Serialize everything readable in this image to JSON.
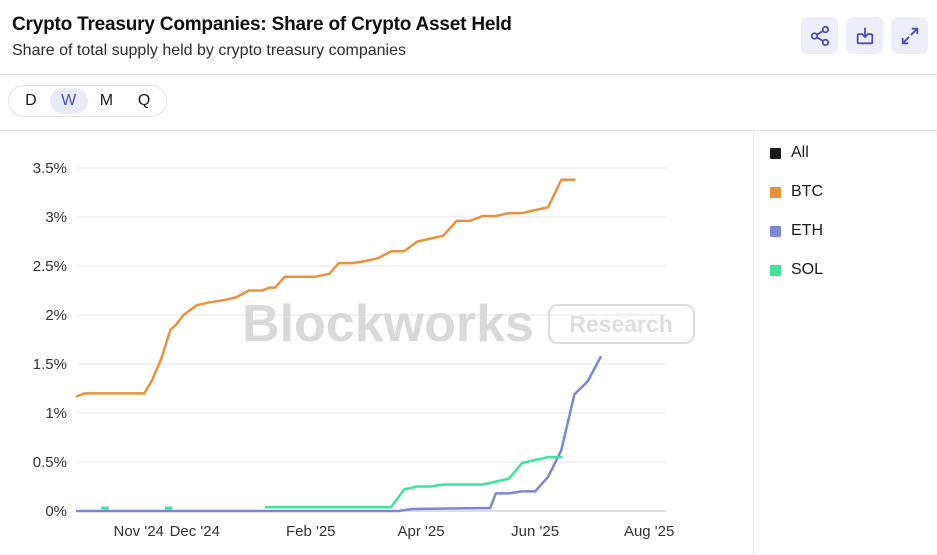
{
  "header": {
    "title": "Crypto Treasury Companies: Share of Crypto Asset Held",
    "subtitle": "Share of total supply held by crypto treasury companies",
    "actions": [
      {
        "icon": "share-icon"
      },
      {
        "icon": "download-icon"
      },
      {
        "icon": "expand-icon"
      }
    ]
  },
  "frequency": {
    "options": [
      "D",
      "W",
      "M",
      "Q"
    ],
    "selected": "W"
  },
  "watermark": {
    "brand": "Blockworks",
    "tag": "Research"
  },
  "legend": [
    {
      "label": "All",
      "color": "#1a1a1a"
    },
    {
      "label": "BTC",
      "color": "#e8913d"
    },
    {
      "label": "ETH",
      "color": "#7b86d6"
    },
    {
      "label": "SOL",
      "color": "#3ee29a"
    }
  ],
  "chart_data": {
    "type": "line",
    "title": "Crypto Treasury Companies: Share of Crypto Asset Held",
    "ylim": [
      0,
      3.5
    ],
    "y_ticks": [
      "0%",
      "0.5%",
      "1%",
      "1.5%",
      "2%",
      "2.5%",
      "3%",
      "3.5%"
    ],
    "y_tick_values": [
      0,
      0.5,
      1,
      1.5,
      2,
      2.5,
      3,
      3.5
    ],
    "xlim": [
      "2024-09-29",
      "2025-08-10"
    ],
    "x_ticks": [
      {
        "label": "Nov '24",
        "date": "2024-11-01"
      },
      {
        "label": "Dec '24",
        "date": "2024-12-01"
      },
      {
        "label": "Feb '25",
        "date": "2025-02-01"
      },
      {
        "label": "Apr '25",
        "date": "2025-04-01"
      },
      {
        "label": "Jun '25",
        "date": "2025-06-01"
      },
      {
        "label": "Aug '25",
        "date": "2025-08-01"
      }
    ],
    "series": [
      {
        "name": "BTC",
        "color": "#e8913d",
        "points": [
          [
            "2024-09-29",
            1.17
          ],
          [
            "2024-10-03",
            1.2
          ],
          [
            "2024-10-09",
            1.2
          ],
          [
            "2024-10-20",
            1.2
          ],
          [
            "2024-10-27",
            1.2
          ],
          [
            "2024-11-01",
            1.2
          ],
          [
            "2024-11-04",
            1.2
          ],
          [
            "2024-11-08",
            1.33
          ],
          [
            "2024-11-13",
            1.55
          ],
          [
            "2024-11-18",
            1.85
          ],
          [
            "2024-11-21",
            1.9
          ],
          [
            "2024-11-25",
            2.0
          ],
          [
            "2024-12-02",
            2.1
          ],
          [
            "2024-12-09",
            2.13
          ],
          [
            "2024-12-16",
            2.15
          ],
          [
            "2024-12-23",
            2.18
          ],
          [
            "2024-12-30",
            2.25
          ],
          [
            "2025-01-06",
            2.25
          ],
          [
            "2025-01-10",
            2.28
          ],
          [
            "2025-01-13",
            2.28
          ],
          [
            "2025-01-18",
            2.39
          ],
          [
            "2025-01-27",
            2.39
          ],
          [
            "2025-02-03",
            2.39
          ],
          [
            "2025-02-11",
            2.42
          ],
          [
            "2025-02-16",
            2.53
          ],
          [
            "2025-02-23",
            2.53
          ],
          [
            "2025-03-02",
            2.55
          ],
          [
            "2025-03-09",
            2.58
          ],
          [
            "2025-03-16",
            2.65
          ],
          [
            "2025-03-23",
            2.65
          ],
          [
            "2025-03-30",
            2.75
          ],
          [
            "2025-04-06",
            2.78
          ],
          [
            "2025-04-13",
            2.81
          ],
          [
            "2025-04-20",
            2.96
          ],
          [
            "2025-04-27",
            2.96
          ],
          [
            "2025-05-04",
            3.01
          ],
          [
            "2025-05-11",
            3.01
          ],
          [
            "2025-05-18",
            3.04
          ],
          [
            "2025-05-25",
            3.04
          ],
          [
            "2025-06-01",
            3.07
          ],
          [
            "2025-06-08",
            3.1
          ],
          [
            "2025-06-15",
            3.38
          ],
          [
            "2025-06-22",
            3.38
          ]
        ]
      },
      {
        "name": "ETH",
        "color": "#7b86d6",
        "points": [
          [
            "2024-09-29",
            0.0
          ],
          [
            "2025-03-20",
            0.0
          ],
          [
            "2025-03-27",
            0.02
          ],
          [
            "2025-05-01",
            0.03
          ],
          [
            "2025-05-08",
            0.03
          ],
          [
            "2025-05-11",
            0.18
          ],
          [
            "2025-05-18",
            0.18
          ],
          [
            "2025-05-25",
            0.2
          ],
          [
            "2025-06-01",
            0.2
          ],
          [
            "2025-06-08",
            0.35
          ],
          [
            "2025-06-15",
            0.62
          ],
          [
            "2025-06-22",
            1.19
          ],
          [
            "2025-06-29",
            1.32
          ],
          [
            "2025-07-06",
            1.57
          ]
        ]
      },
      {
        "name": "SOL",
        "color": "#3ee29a",
        "points": [
          [
            "2025-01-08",
            0.04
          ],
          [
            "2025-03-09",
            0.04
          ],
          [
            "2025-03-16",
            0.04
          ],
          [
            "2025-03-23",
            0.22
          ],
          [
            "2025-03-30",
            0.25
          ],
          [
            "2025-04-06",
            0.25
          ],
          [
            "2025-04-13",
            0.27
          ],
          [
            "2025-04-20",
            0.27
          ],
          [
            "2025-04-27",
            0.27
          ],
          [
            "2025-05-04",
            0.27
          ],
          [
            "2025-05-11",
            0.3
          ],
          [
            "2025-05-18",
            0.33
          ],
          [
            "2025-05-25",
            0.49
          ],
          [
            "2025-06-01",
            0.52
          ],
          [
            "2025-06-08",
            0.55
          ],
          [
            "2025-06-15",
            0.55
          ]
        ],
        "blips": [
          [
            "2024-10-12",
            "2024-10-16",
            0.03
          ],
          [
            "2024-11-15",
            "2024-11-19",
            0.03
          ]
        ]
      }
    ]
  }
}
